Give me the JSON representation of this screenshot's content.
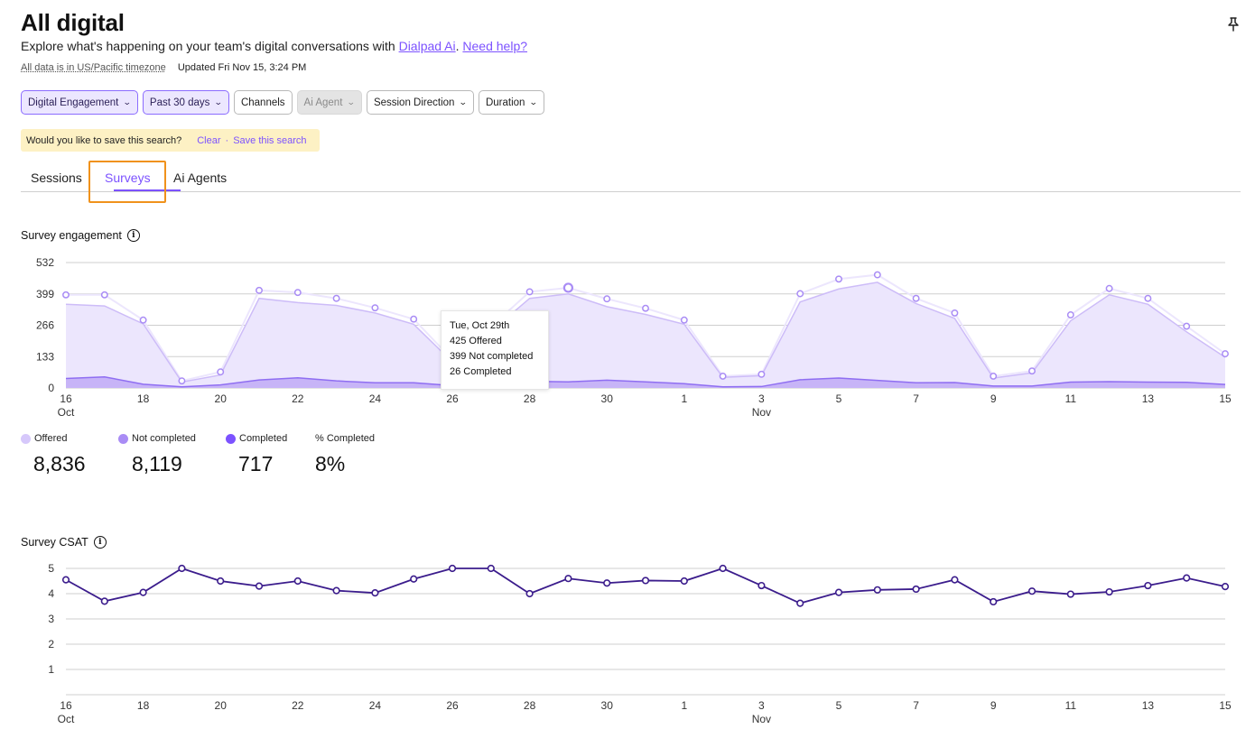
{
  "page": {
    "title": "All digital",
    "subtitle_prefix": "Explore what's happening on your team's digital conversations with ",
    "link_dialpad": "Dialpad Ai",
    "subtitle_sep": ". ",
    "link_help": "Need help?",
    "timezone": "All data is in US/Pacific timezone",
    "updated": "Updated Fri Nov 15, 3:24 PM"
  },
  "filters": [
    {
      "label": "Digital Engagement",
      "state": "active",
      "dropdown": true
    },
    {
      "label": "Past 30 days",
      "state": "active",
      "dropdown": true
    },
    {
      "label": "Channels",
      "state": "normal",
      "dropdown": false
    },
    {
      "label": "Ai Agent",
      "state": "disabled",
      "dropdown": true
    },
    {
      "label": "Session Direction",
      "state": "normal",
      "dropdown": true
    },
    {
      "label": "Duration",
      "state": "normal",
      "dropdown": true
    }
  ],
  "save_search": {
    "question": "Would you like to save this search?",
    "clear": "Clear",
    "separator": "·",
    "save": "Save this search"
  },
  "tabs": [
    {
      "label": "Sessions",
      "active": false
    },
    {
      "label": "Surveys",
      "active": true
    },
    {
      "label": "Ai Agents",
      "active": false
    }
  ],
  "engagement": {
    "title": "Survey engagement",
    "tooltip": {
      "date": "Tue, Oct 29th",
      "offered": "425 Offered",
      "not_completed": "399 Not completed",
      "completed": "26 Completed"
    },
    "stats": [
      {
        "label": "Offered",
        "value": "8,836",
        "color": "#d6c8fb"
      },
      {
        "label": "Not completed",
        "value": "8,119",
        "color": "#a98cf5"
      },
      {
        "label": "Completed",
        "value": "717",
        "color": "#7c52ff"
      },
      {
        "label": "% Completed",
        "value": "8%",
        "color": ""
      }
    ]
  },
  "csat": {
    "title": "Survey CSAT"
  },
  "chart_data": [
    {
      "type": "area",
      "title": "Survey engagement",
      "x": [
        "Oct 16",
        "Oct 17",
        "Oct 18",
        "Oct 19",
        "Oct 20",
        "Oct 21",
        "Oct 22",
        "Oct 23",
        "Oct 24",
        "Oct 25",
        "Oct 26",
        "Oct 27",
        "Oct 28",
        "Oct 29",
        "Oct 30",
        "Oct 31",
        "Nov 1",
        "Nov 2",
        "Nov 3",
        "Nov 4",
        "Nov 5",
        "Nov 6",
        "Nov 7",
        "Nov 8",
        "Nov 9",
        "Nov 10",
        "Nov 11",
        "Nov 12",
        "Nov 13",
        "Nov 14",
        "Nov 15"
      ],
      "x_tick_labels": [
        "16",
        "18",
        "20",
        "22",
        "24",
        "26",
        "28",
        "30",
        "1",
        "3",
        "5",
        "7",
        "9",
        "11",
        "13",
        "15"
      ],
      "x_month_labels": [
        "Oct",
        "Nov"
      ],
      "y_ticks": [
        0,
        133,
        266,
        399,
        532
      ],
      "ylim": [
        0,
        532
      ],
      "series": [
        {
          "name": "Offered",
          "color": "#d6c8fb",
          "values": [
            395,
            395,
            288,
            30,
            68,
            414,
            405,
            380,
            340,
            292,
            120,
            260,
            408,
            425,
            378,
            338,
            288,
            50,
            58,
            400,
            462,
            480,
            380,
            318,
            50,
            72,
            310,
            422,
            380,
            262,
            145
          ]
        },
        {
          "name": "Not completed",
          "color": "#a98cf5",
          "values": [
            355,
            348,
            272,
            25,
            55,
            380,
            362,
            350,
            318,
            270,
            110,
            240,
            380,
            399,
            345,
            312,
            270,
            45,
            52,
            365,
            420,
            448,
            358,
            295,
            42,
            64,
            285,
            395,
            355,
            238,
            130
          ]
        },
        {
          "name": "Completed",
          "color": "#7c52ff",
          "values": [
            40,
            47,
            16,
            5,
            13,
            34,
            43,
            30,
            22,
            22,
            10,
            20,
            28,
            26,
            33,
            26,
            18,
            5,
            6,
            35,
            42,
            32,
            22,
            23,
            8,
            8,
            25,
            27,
            25,
            24,
            15
          ]
        }
      ],
      "grid": true
    },
    {
      "type": "line",
      "title": "Survey CSAT",
      "x": [
        "Oct 16",
        "Oct 17",
        "Oct 18",
        "Oct 19",
        "Oct 20",
        "Oct 21",
        "Oct 22",
        "Oct 23",
        "Oct 24",
        "Oct 25",
        "Oct 26",
        "Oct 27",
        "Oct 28",
        "Oct 29",
        "Oct 30",
        "Oct 31",
        "Nov 1",
        "Nov 2",
        "Nov 3",
        "Nov 4",
        "Nov 5",
        "Nov 6",
        "Nov 7",
        "Nov 8",
        "Nov 9",
        "Nov 10",
        "Nov 11",
        "Nov 12",
        "Nov 13",
        "Nov 14",
        "Nov 15"
      ],
      "x_tick_labels": [
        "16",
        "18",
        "20",
        "22",
        "24",
        "26",
        "28",
        "30",
        "1",
        "3",
        "5",
        "7",
        "9",
        "11",
        "13",
        "15"
      ],
      "x_month_labels": [
        "Oct",
        "Nov"
      ],
      "y_ticks": [
        1,
        2,
        3,
        4,
        5
      ],
      "ylim": [
        0,
        5
      ],
      "series": [
        {
          "color": "#3b1c8c",
          "values": [
            4.55,
            3.7,
            4.05,
            5.0,
            4.5,
            4.3,
            4.5,
            4.12,
            4.03,
            4.58,
            5.0,
            5.0,
            4.0,
            4.6,
            4.42,
            4.52,
            4.5,
            5.0,
            4.32,
            3.62,
            4.05,
            4.15,
            4.18,
            4.55,
            3.68,
            4.1,
            3.98,
            4.07,
            4.32,
            4.62,
            4.28
          ]
        }
      ],
      "grid": true
    }
  ]
}
